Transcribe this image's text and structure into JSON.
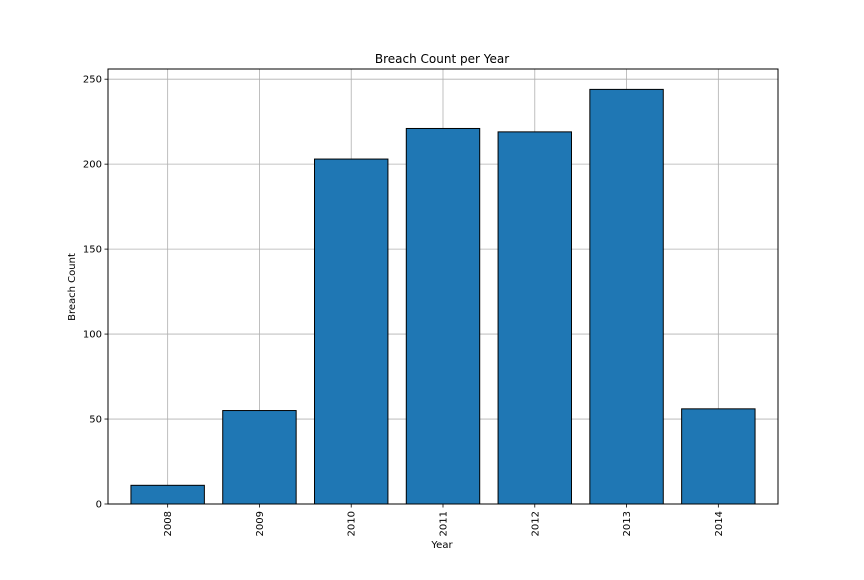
{
  "chart_data": {
    "type": "bar",
    "title": "Breach Count per Year",
    "xlabel": "Year",
    "ylabel": "Breach Count",
    "categories": [
      "2008",
      "2009",
      "2010",
      "2011",
      "2012",
      "2013",
      "2014"
    ],
    "values": [
      11,
      55,
      203,
      221,
      219,
      244,
      56
    ],
    "ylim": [
      0,
      256
    ],
    "yticks": [
      0,
      50,
      100,
      150,
      200,
      250
    ],
    "grid": true,
    "xtick_rotation": 90,
    "colors": {
      "bar_fill": "#1f77b4",
      "bar_edge": "#000000",
      "grid": "#b0b0b0",
      "axes": "#000000"
    }
  }
}
